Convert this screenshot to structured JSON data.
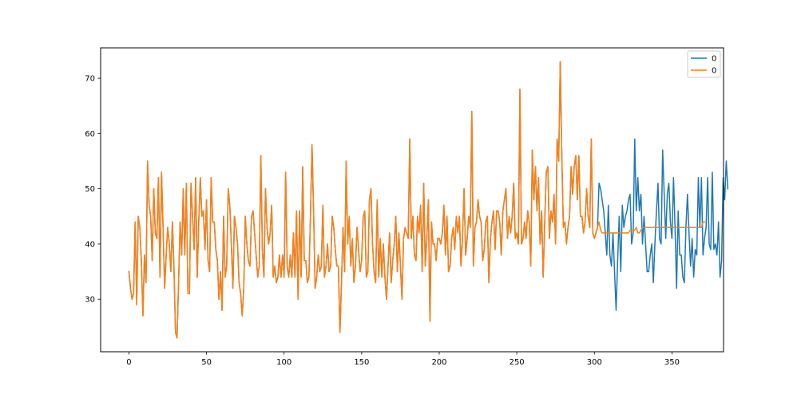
{
  "chart_data": {
    "type": "line",
    "xlim": [
      -18.25,
      383.25
    ],
    "ylim": [
      20.5,
      75.5
    ],
    "x_ticks": [
      0,
      50,
      100,
      150,
      200,
      250,
      300,
      350
    ],
    "y_ticks": [
      30,
      40,
      50,
      60,
      70
    ],
    "legend_position": "top-right",
    "grid": false,
    "series": [
      {
        "name": "0",
        "color": "#1f77b4",
        "x_start": 0,
        "values": [
          35,
          32,
          30,
          31,
          44,
          29,
          45,
          43,
          37,
          27,
          38,
          33,
          55,
          47,
          45,
          37,
          50,
          42,
          41,
          52,
          34,
          53,
          43,
          32,
          38,
          43,
          40,
          35,
          44,
          36,
          24,
          23,
          33,
          44,
          38,
          50,
          38,
          51,
          31,
          31,
          51,
          45,
          39,
          52,
          34,
          44,
          52,
          45,
          46,
          39,
          48,
          37,
          35,
          52,
          44,
          44,
          39,
          37,
          30,
          35,
          28,
          45,
          34,
          36,
          50,
          47,
          40,
          32,
          45,
          43,
          40,
          33,
          31,
          27,
          32,
          45,
          40,
          37,
          36,
          45,
          46,
          42,
          38,
          34,
          36,
          56,
          39,
          34,
          50,
          43,
          40,
          42,
          47,
          34,
          36,
          33,
          34,
          38,
          34,
          38,
          34,
          53,
          36,
          34,
          38,
          34,
          42,
          34,
          46,
          30,
          46,
          34,
          54,
          37,
          37,
          33,
          34,
          45,
          58,
          46,
          32,
          34,
          38,
          35,
          36,
          47,
          34,
          36,
          40,
          35,
          36,
          45,
          43,
          39,
          36,
          36,
          24,
          33,
          43,
          35,
          55,
          40,
          45,
          36,
          41,
          33,
          36,
          43,
          39,
          35,
          37,
          45,
          46,
          34,
          35,
          48,
          50,
          40,
          35,
          33,
          48,
          34,
          41,
          34,
          40,
          34,
          30,
          36,
          42,
          33,
          37,
          40,
          45,
          35,
          42,
          36,
          30,
          41,
          43,
          42,
          41,
          59,
          41,
          45,
          38,
          37,
          45,
          42,
          47,
          35,
          51,
          36,
          41,
          48,
          26,
          44,
          40,
          40,
          37,
          41,
          41,
          40,
          42,
          47,
          38,
          45,
          35,
          36,
          41,
          43,
          39,
          45,
          42,
          45,
          36,
          41,
          50,
          38,
          41,
          45,
          43,
          64,
          36,
          43,
          44,
          48,
          45,
          44,
          37,
          39,
          44,
          45,
          33,
          41,
          44,
          46,
          39,
          46,
          46,
          44,
          38,
          46,
          48,
          50,
          41,
          45,
          42,
          45,
          51,
          41,
          42,
          40,
          68,
          40,
          41,
          44,
          41,
          46,
          44,
          36,
          57,
          48,
          54,
          46,
          52,
          40,
          46,
          34,
          44,
          53,
          54,
          41,
          46,
          44,
          49,
          40,
          59,
          55,
          73,
          56,
          43,
          44,
          40,
          43,
          45,
          54,
          49,
          54,
          56,
          48,
          56,
          45,
          45,
          42,
          44,
          50,
          45,
          43,
          59,
          42,
          41,
          42,
          43,
          51,
          50,
          48,
          46,
          42,
          38,
          47,
          38,
          36,
          42,
          35,
          28,
          37,
          45,
          35,
          47,
          43,
          45,
          46,
          48,
          49,
          40,
          42,
          59,
          46,
          52,
          46,
          49,
          40,
          45,
          40,
          35,
          35,
          38,
          40,
          33,
          40,
          46,
          51,
          41,
          40,
          57,
          49,
          41,
          49,
          51,
          44,
          41,
          52,
          43,
          32,
          46,
          38,
          38,
          34,
          33,
          43,
          49,
          42,
          36,
          41,
          34,
          39,
          38,
          52,
          43,
          52,
          38,
          41,
          43,
          52,
          40,
          39,
          53,
          39,
          40,
          38,
          44,
          34,
          37,
          52,
          48,
          55,
          50
        ]
      },
      {
        "name": "0",
        "color": "#ff7f0e",
        "x_start": 0,
        "values": [
          35,
          32,
          30,
          31,
          44,
          29,
          45,
          43,
          37,
          27,
          38,
          33,
          55,
          47,
          45,
          37,
          50,
          42,
          41,
          52,
          34,
          53,
          43,
          32,
          38,
          43,
          40,
          35,
          44,
          36,
          24,
          23,
          33,
          44,
          38,
          50,
          38,
          51,
          31,
          31,
          51,
          45,
          39,
          52,
          34,
          44,
          52,
          45,
          46,
          39,
          48,
          37,
          35,
          52,
          44,
          44,
          39,
          37,
          30,
          35,
          28,
          45,
          34,
          36,
          50,
          47,
          40,
          32,
          45,
          43,
          40,
          33,
          31,
          27,
          32,
          45,
          40,
          37,
          36,
          45,
          46,
          42,
          38,
          34,
          36,
          56,
          39,
          34,
          50,
          43,
          40,
          42,
          47,
          34,
          36,
          33,
          34,
          38,
          34,
          38,
          34,
          53,
          36,
          34,
          38,
          34,
          42,
          34,
          46,
          30,
          46,
          34,
          54,
          37,
          37,
          33,
          34,
          45,
          58,
          46,
          32,
          34,
          38,
          35,
          36,
          47,
          34,
          36,
          40,
          35,
          36,
          45,
          43,
          39,
          36,
          36,
          24,
          33,
          43,
          35,
          55,
          40,
          45,
          36,
          41,
          33,
          36,
          43,
          39,
          35,
          37,
          45,
          46,
          34,
          35,
          48,
          50,
          40,
          35,
          33,
          48,
          34,
          41,
          34,
          40,
          34,
          30,
          36,
          42,
          33,
          37,
          40,
          45,
          35,
          42,
          36,
          30,
          41,
          43,
          42,
          41,
          59,
          41,
          45,
          38,
          37,
          45,
          42,
          47,
          35,
          51,
          36,
          41,
          48,
          26,
          44,
          40,
          40,
          37,
          41,
          41,
          40,
          42,
          47,
          38,
          45,
          35,
          36,
          41,
          43,
          39,
          45,
          42,
          45,
          36,
          41,
          50,
          38,
          41,
          45,
          43,
          64,
          36,
          43,
          44,
          48,
          45,
          44,
          37,
          39,
          44,
          45,
          33,
          41,
          44,
          46,
          39,
          46,
          46,
          44,
          38,
          46,
          48,
          50,
          41,
          45,
          42,
          45,
          51,
          41,
          42,
          40,
          68,
          40,
          41,
          44,
          41,
          46,
          44,
          36,
          57,
          48,
          54,
          46,
          52,
          40,
          46,
          34,
          44,
          53,
          54,
          41,
          46,
          44,
          49,
          40,
          59,
          55,
          73,
          56,
          43,
          44,
          40,
          43,
          45,
          54,
          49,
          54,
          56,
          48,
          56,
          45,
          45,
          42,
          44,
          50,
          45,
          43,
          59,
          42,
          41,
          42,
          43,
          44,
          42.5,
          42,
          42,
          42,
          42,
          42,
          42,
          42,
          42,
          42,
          42,
          42,
          42,
          42,
          42,
          42,
          42,
          42,
          42,
          42.5,
          42.5,
          42.5,
          42.5,
          43,
          42,
          42,
          42.5,
          43,
          43,
          43,
          43,
          43,
          43,
          43,
          43,
          43,
          43,
          43,
          43,
          43,
          43,
          43,
          43,
          43,
          43,
          43,
          43,
          43,
          43,
          43,
          43,
          43,
          43,
          43,
          43,
          43,
          43,
          43,
          43,
          43,
          43,
          43,
          43,
          43,
          43,
          43,
          44,
          44
        ]
      }
    ]
  }
}
